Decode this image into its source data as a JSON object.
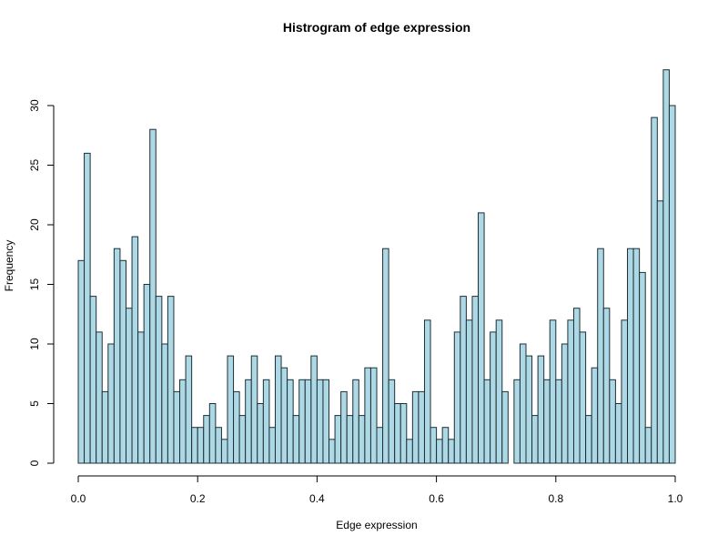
{
  "chart_data": {
    "type": "bar",
    "title": "Histrogram of edge expression",
    "xlabel": "Edge expression",
    "ylabel": "Frequency",
    "xlim": [
      0,
      1
    ],
    "ylim": [
      0,
      33
    ],
    "bin_width": 0.01,
    "x_ticks": [
      "0.0",
      "0.2",
      "0.4",
      "0.6",
      "0.8",
      "1.0"
    ],
    "y_ticks": [
      "0",
      "5",
      "10",
      "15",
      "20",
      "25",
      "30"
    ],
    "bar_color": "#add8e6",
    "values": [
      17,
      26,
      14,
      11,
      6,
      10,
      18,
      17,
      13,
      19,
      11,
      15,
      28,
      14,
      10,
      14,
      6,
      7,
      9,
      3,
      3,
      4,
      5,
      3,
      2,
      9,
      6,
      4,
      7,
      9,
      5,
      7,
      3,
      9,
      8,
      7,
      4,
      7,
      7,
      9,
      7,
      7,
      2,
      4,
      6,
      4,
      7,
      4,
      8,
      8,
      3,
      18,
      7,
      5,
      5,
      2,
      6,
      6,
      12,
      3,
      2,
      3,
      2,
      11,
      14,
      12,
      14,
      21,
      7,
      11,
      12,
      6,
      0,
      7,
      10,
      9,
      4,
      9,
      7,
      12,
      7,
      10,
      12,
      13,
      11,
      4,
      8,
      18,
      13,
      7,
      5,
      12,
      18,
      18,
      16,
      3,
      29,
      22,
      33,
      30
    ]
  }
}
